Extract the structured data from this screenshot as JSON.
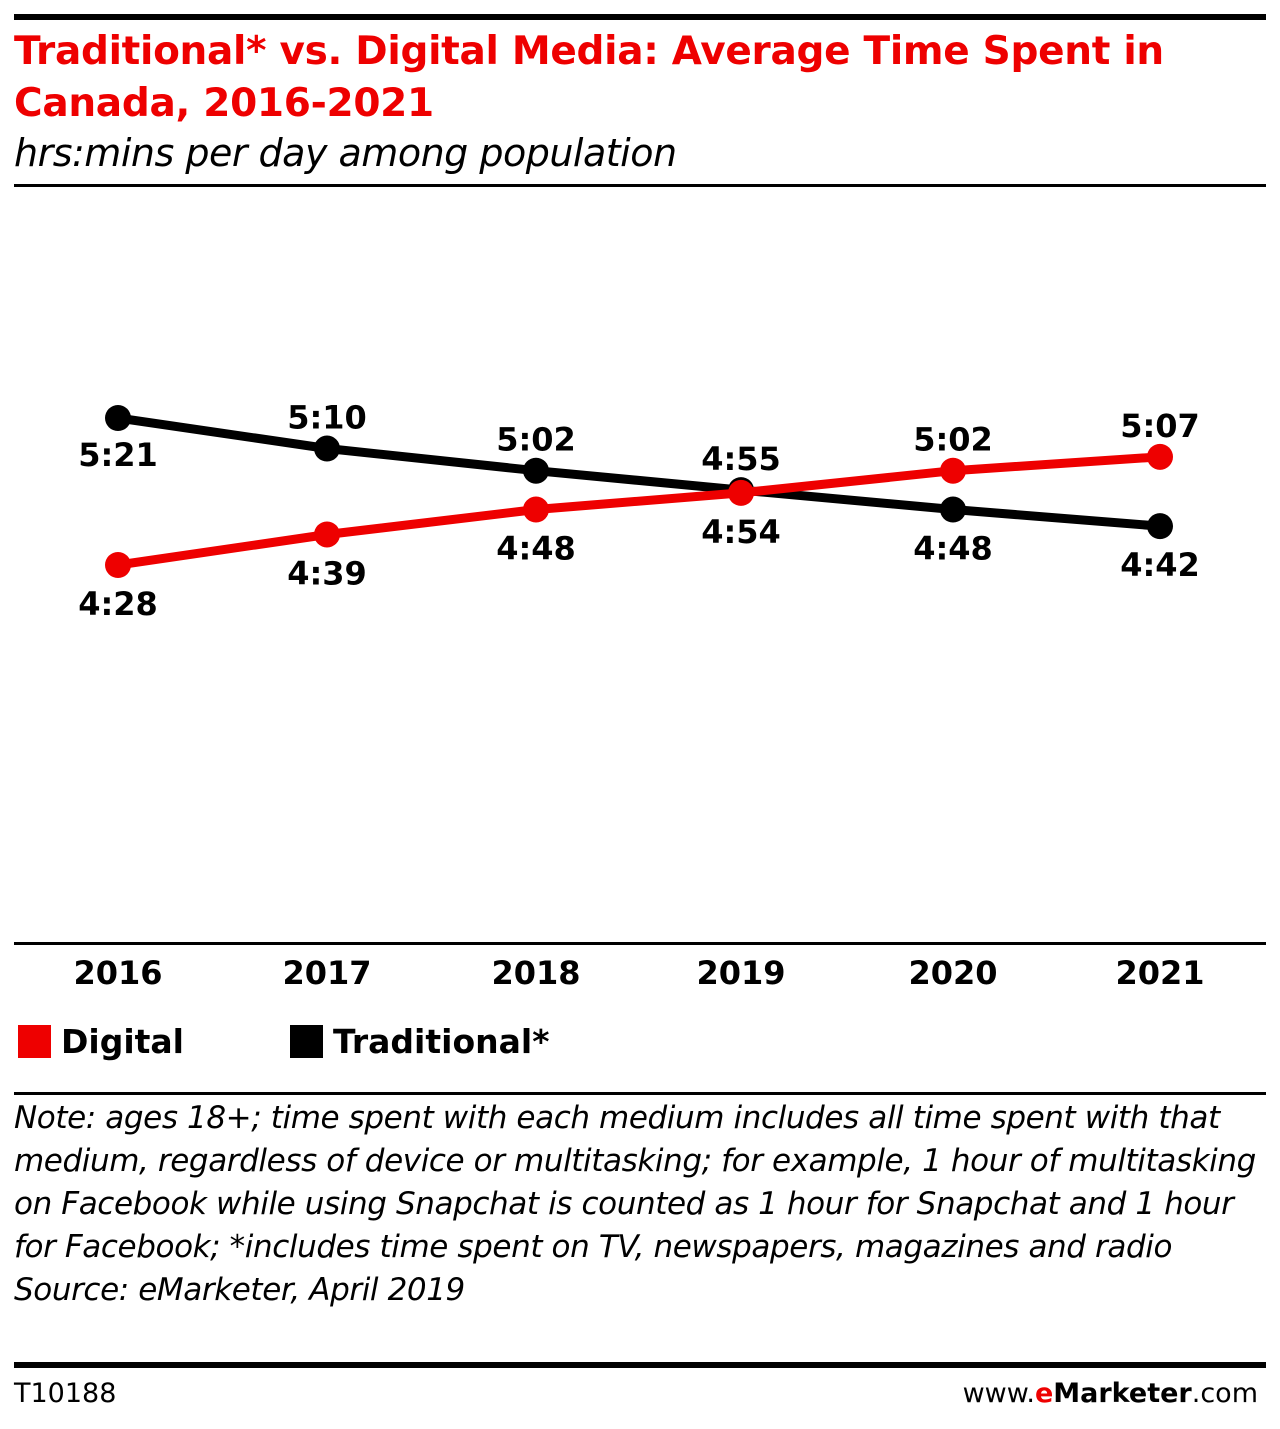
{
  "header": {
    "title": "Traditional* vs. Digital Media: Average Time Spent in Canada, 2016-2021",
    "subtitle": "hrs:mins per day among population"
  },
  "colors": {
    "digital": "#ee0000",
    "traditional": "#000000",
    "title": "#ee0000"
  },
  "chart_data": {
    "type": "line",
    "title": "Traditional* vs. Digital Media: Average Time Spent in Canada, 2016-2021",
    "subtitle": "hrs:mins per day among population",
    "categories": [
      "2016",
      "2017",
      "2018",
      "2019",
      "2020",
      "2021"
    ],
    "series": [
      {
        "name": "Digital",
        "color": "#ee0000",
        "values": [
          "4:28",
          "4:39",
          "4:48",
          "4:54",
          "5:02",
          "5:07"
        ]
      },
      {
        "name": "Traditional*",
        "color": "#000000",
        "values": [
          "5:21",
          "5:10",
          "5:02",
          "4:55",
          "4:48",
          "4:42"
        ]
      }
    ],
    "grid": false,
    "legend": "bottom-left"
  },
  "legend": {
    "items": [
      "Digital",
      "Traditional*"
    ]
  },
  "note": "Note: ages 18+; time spent with each medium includes all time spent with that medium, regardless of device or multitasking; for example, 1 hour of multitasking on Facebook while using Snapchat is counted as 1 hour for Snapchat and 1 hour for Facebook; *includes time spent on TV, newspapers, magazines and radio",
  "source": "Source: eMarketer, April 2019",
  "footer": {
    "chart_id": "T10188",
    "brand_prefix": "www.",
    "brand_e": "e",
    "brand_name": "Marketer",
    "brand_suffix": ".com"
  }
}
